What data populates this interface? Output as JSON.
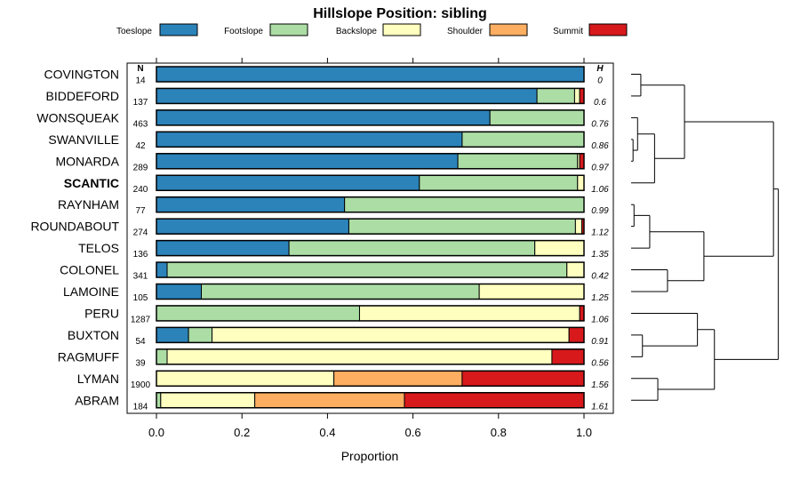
{
  "chart_data": {
    "type": "bar",
    "stacked": true,
    "orientation": "horizontal",
    "title": "Hillslope Position: sibling",
    "xlabel": "Proportion",
    "xlim": [
      0,
      1
    ],
    "x_ticks": [
      "0.0",
      "0.2",
      "0.4",
      "0.6",
      "0.8",
      "1.0"
    ],
    "n_header": "N",
    "h_header": "H",
    "legend": [
      {
        "name": "Toeslope",
        "color": "#2b83ba"
      },
      {
        "name": "Footslope",
        "color": "#abdda4"
      },
      {
        "name": "Backslope",
        "color": "#ffffbf"
      },
      {
        "name": "Shoulder",
        "color": "#fdae61"
      },
      {
        "name": "Summit",
        "color": "#d7191c"
      }
    ],
    "highlight": "SCANTIC",
    "rows": [
      {
        "name": "COVINGTON",
        "n": "14",
        "h": "0",
        "values": [
          1.0,
          0,
          0,
          0,
          0
        ]
      },
      {
        "name": "BIDDEFORD",
        "n": "137",
        "h": "0.6",
        "values": [
          0.89,
          0.088,
          0.012,
          0,
          0.01
        ]
      },
      {
        "name": "WONSQUEAK",
        "n": "463",
        "h": "0.76",
        "values": [
          0.78,
          0.22,
          0,
          0,
          0
        ]
      },
      {
        "name": "SWANVILLE",
        "n": "42",
        "h": "0.86",
        "values": [
          0.715,
          0.285,
          0,
          0,
          0
        ]
      },
      {
        "name": "MONARDA",
        "n": "289",
        "h": "0.97",
        "values": [
          0.705,
          0.28,
          0.005,
          0,
          0.01
        ]
      },
      {
        "name": "SCANTIC",
        "n": "240",
        "h": "1.06",
        "values": [
          0.615,
          0.37,
          0.015,
          0,
          0
        ]
      },
      {
        "name": "RAYNHAM",
        "n": "77",
        "h": "0.99",
        "values": [
          0.44,
          0.56,
          0,
          0,
          0
        ]
      },
      {
        "name": "ROUNDABOUT",
        "n": "274",
        "h": "1.12",
        "values": [
          0.45,
          0.53,
          0.015,
          0,
          0.005
        ]
      },
      {
        "name": "TELOS",
        "n": "136",
        "h": "1.35",
        "values": [
          0.31,
          0.575,
          0.115,
          0,
          0
        ]
      },
      {
        "name": "COLONEL",
        "n": "341",
        "h": "0.42",
        "values": [
          0.025,
          0.935,
          0.04,
          0,
          0
        ]
      },
      {
        "name": "LAMOINE",
        "n": "105",
        "h": "1.25",
        "values": [
          0.105,
          0.65,
          0.245,
          0,
          0
        ]
      },
      {
        "name": "PERU",
        "n": "1287",
        "h": "1.06",
        "values": [
          0,
          0.475,
          0.515,
          0,
          0.01
        ]
      },
      {
        "name": "BUXTON",
        "n": "54",
        "h": "0.91",
        "values": [
          0.075,
          0.055,
          0.835,
          0,
          0.035
        ]
      },
      {
        "name": "RAGMUFF",
        "n": "39",
        "h": "0.56",
        "values": [
          0,
          0.025,
          0.9,
          0,
          0.075
        ]
      },
      {
        "name": "LYMAN",
        "n": "1900",
        "h": "1.56",
        "values": [
          0,
          0,
          0.415,
          0.3,
          0.285
        ]
      },
      {
        "name": "ABRAM",
        "n": "184",
        "h": "1.61",
        "values": [
          0,
          0.01,
          0.22,
          0.35,
          0.42
        ]
      }
    ],
    "dendrogram_merges": [
      {
        "a": {
          "leaf": 0
        },
        "b": {
          "leaf": 1
        },
        "height": 0.06
      },
      {
        "a": {
          "leaf": 3
        },
        "b": {
          "leaf": 4
        },
        "height": 0.012
      },
      {
        "a": {
          "leaf": 2
        },
        "b": {
          "merge": 1
        },
        "height": 0.04
      },
      {
        "a": {
          "merge": 2
        },
        "b": {
          "leaf": 5
        },
        "height": 0.145
      },
      {
        "a": {
          "merge": 0
        },
        "b": {
          "merge": 3
        },
        "height": 0.33
      },
      {
        "a": {
          "leaf": 6
        },
        "b": {
          "leaf": 7
        },
        "height": 0.018
      },
      {
        "a": {
          "merge": 5
        },
        "b": {
          "leaf": 8
        },
        "height": 0.115
      },
      {
        "a": {
          "leaf": 9
        },
        "b": {
          "leaf": 10
        },
        "height": 0.225
      },
      {
        "a": {
          "merge": 6
        },
        "b": {
          "merge": 7
        },
        "height": 0.45
      },
      {
        "a": {
          "merge": 4
        },
        "b": {
          "merge": 8
        },
        "height": 0.88
      },
      {
        "a": {
          "leaf": 12
        },
        "b": {
          "leaf": 13
        },
        "height": 0.07
      },
      {
        "a": {
          "leaf": 11
        },
        "b": {
          "merge": 10
        },
        "height": 0.41
      },
      {
        "a": {
          "leaf": 14
        },
        "b": {
          "leaf": 15
        },
        "height": 0.165
      },
      {
        "a": {
          "merge": 11
        },
        "b": {
          "merge": 12
        },
        "height": 0.515
      },
      {
        "a": {
          "merge": 9
        },
        "b": {
          "merge": 13
        },
        "height": 0.91
      }
    ]
  }
}
